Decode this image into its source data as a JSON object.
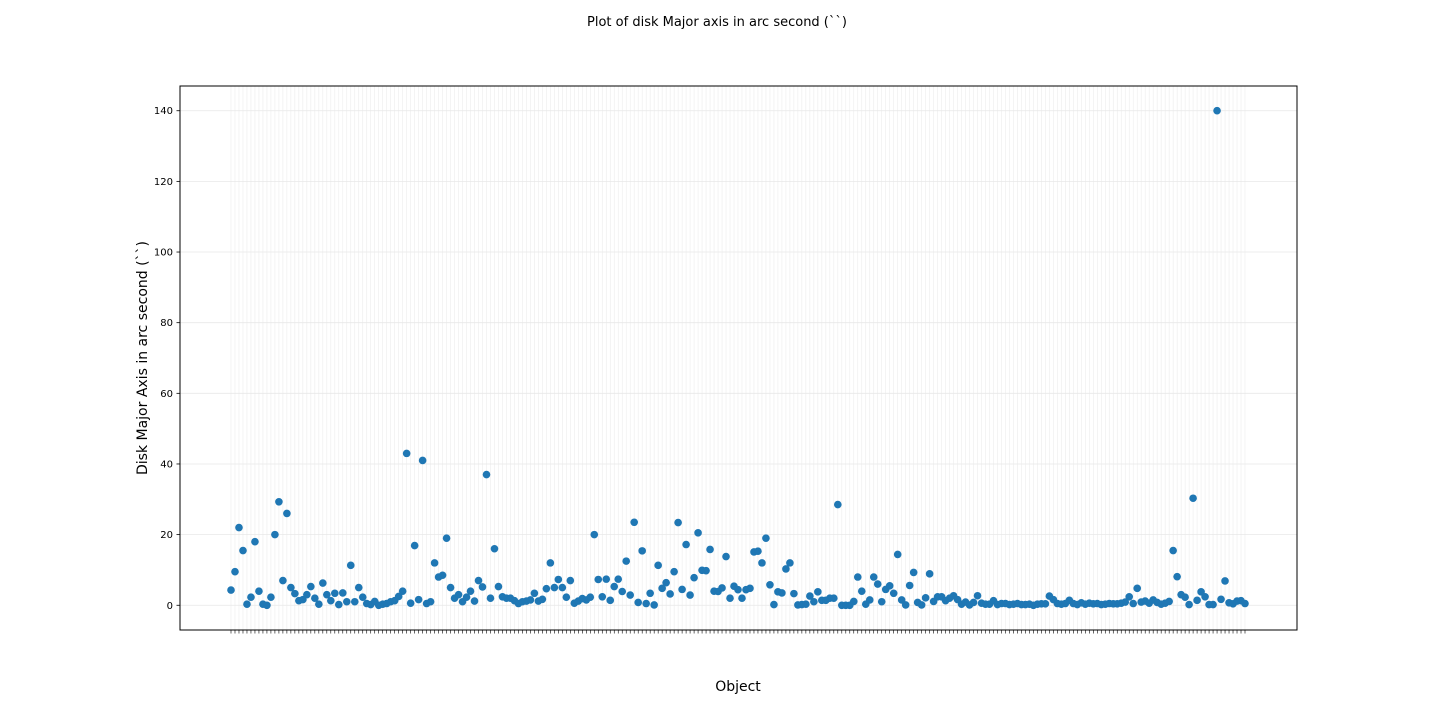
{
  "chart_data": {
    "type": "scatter",
    "title": "Plot of disk Major axis in arc second (``)",
    "xlabel": "Object",
    "ylabel": "Disk Major Axis in arc second (``)",
    "ylim": [
      -7,
      147
    ],
    "yticks": [
      0,
      20,
      40,
      60,
      80,
      100,
      120,
      140
    ],
    "grid": true,
    "legend": "none",
    "marker_color": "#1f77b4",
    "series": [
      {
        "values": [
          4.3,
          9.5,
          22,
          15.5,
          0.3,
          2.3,
          18,
          4,
          0.3,
          0,
          2.3,
          20,
          29.3,
          7,
          26,
          5,
          3.3,
          1.3,
          1.6,
          3,
          5.3,
          2,
          0.3,
          6.3,
          3,
          1.3,
          3.4,
          0.2,
          3.5,
          1,
          11.3,
          1,
          5,
          2.3,
          0.5,
          0.2,
          1.1,
          0,
          0.3,
          0.5,
          1,
          1.3,
          2.5,
          4,
          43,
          0.6,
          16.9,
          1.6,
          41,
          0.5,
          1,
          12,
          8,
          8.5,
          19,
          5,
          2,
          3,
          1,
          2.3,
          4,
          1.2,
          7,
          5.2,
          37,
          2,
          16,
          5.3,
          2.4,
          2,
          2,
          1.3,
          0.5,
          1,
          1.2,
          1.5,
          3.4,
          1.2,
          1.7,
          4.7,
          12,
          5,
          7.3,
          5,
          2.3,
          7,
          0.6,
          1.2,
          1.9,
          1.5,
          2.3,
          20,
          7.3,
          2.4,
          7.4,
          1.4,
          5.3,
          7.4,
          3.9,
          12.5,
          2.9,
          23.5,
          0.8,
          15.4,
          0.5,
          3.4,
          0.1,
          11.3,
          4.8,
          6.4,
          3.2,
          9.5,
          23.4,
          4.5,
          17.2,
          2.9,
          7.8,
          20.5,
          9.9,
          9.8,
          15.8,
          4,
          3.9,
          4.9,
          13.8,
          2,
          5.4,
          4.4,
          2,
          4.4,
          4.8,
          15.1,
          15.3,
          12,
          19,
          5.8,
          0.2,
          3.8,
          3.5,
          10.3,
          12,
          3.3,
          0.1,
          0.2,
          0.3,
          2.6,
          1,
          3.8,
          1.4,
          1.4,
          2,
          2,
          28.5,
          0,
          0,
          0,
          1.1,
          8,
          4,
          0.3,
          1.5,
          8,
          6,
          1,
          4.5,
          5.5,
          3.4,
          14.4,
          1.5,
          0.1,
          5.6,
          9.3,
          0.8,
          0.1,
          2.1,
          8.9,
          1.1,
          2.4,
          2.4,
          1.3,
          2,
          2.7,
          1.6,
          0.3,
          0.9,
          0.1,
          0.8,
          2.7,
          0.6,
          0.3,
          0.3,
          1.3,
          0.2,
          0.5,
          0.5,
          0.2,
          0.3,
          0.5,
          0.2,
          0.2,
          0.3,
          0,
          0.3,
          0.4,
          0.4,
          2.6,
          1.6,
          0.5,
          0.3,
          0.5,
          1.4,
          0.5,
          0.2,
          0.7,
          0.3,
          0.6,
          0.4,
          0.5,
          0.2,
          0.3,
          0.5,
          0.4,
          0.4,
          0.6,
          0.9,
          2.4,
          0.5,
          4.8,
          0.9,
          1.2,
          0.6,
          1.5,
          0.8,
          0.3,
          0.6,
          1.1,
          15.5,
          8.1,
          3,
          2.3,
          0.2,
          30.3,
          1.4,
          3.8,
          2.4,
          0.2,
          0.2,
          140,
          1.7,
          6.9,
          0.7,
          0.4,
          1.2,
          1.3,
          0.5
        ]
      }
    ]
  }
}
